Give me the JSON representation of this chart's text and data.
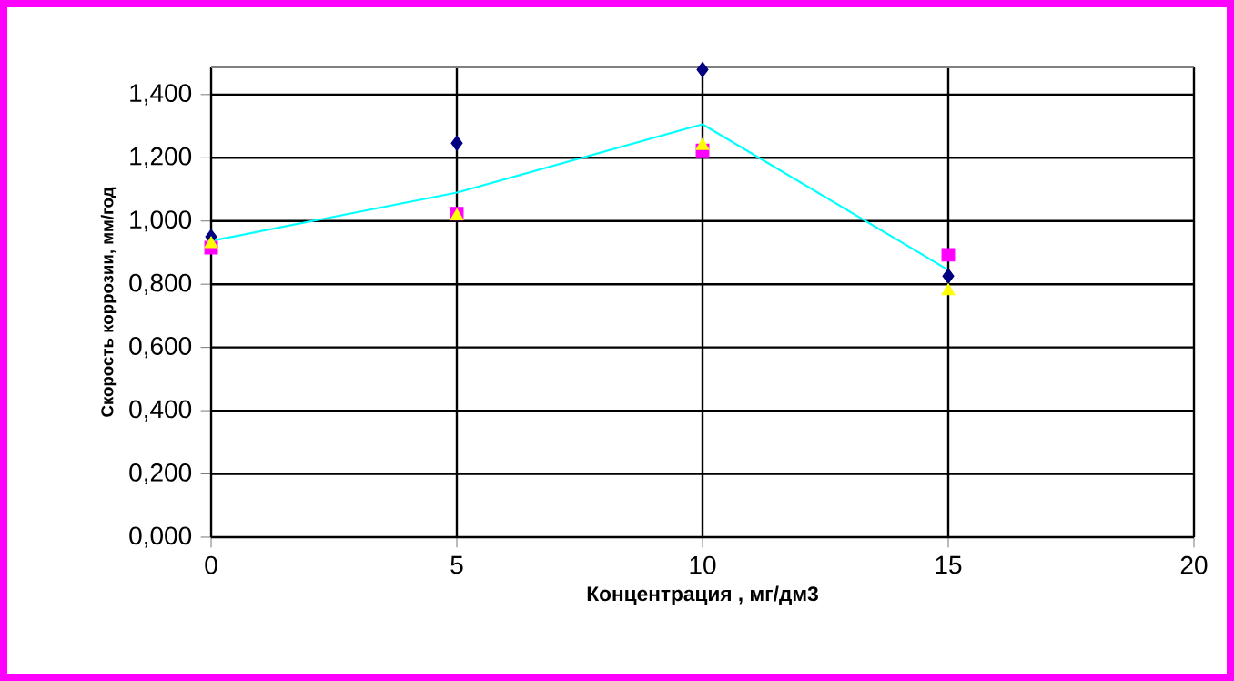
{
  "chart_data": {
    "type": "scatter",
    "xlabel": "Концентрация , мг/дм3",
    "ylabel": "Скорость коррозии, мм/год",
    "x": [
      0,
      5,
      10,
      15
    ],
    "series": [
      {
        "color": "#000080",
        "marker": "diamond",
        "values": [
          0.95,
          1.246,
          1.479,
          0.826
        ]
      },
      {
        "color": "#ff00ff",
        "marker": "square",
        "values": [
          0.916,
          1.023,
          1.223,
          0.893
        ]
      },
      {
        "color": "#ffff00",
        "marker": "triangle",
        "values": [
          0.927,
          1.015,
          1.238,
          0.778
        ]
      },
      {
        "type": "line",
        "color": "#00ffff",
        "marker": "none",
        "values": [
          0.937,
          1.09,
          1.306,
          0.845
        ]
      }
    ],
    "xlim": [
      0,
      20
    ],
    "xticks": [
      0,
      5,
      10,
      15,
      20
    ],
    "ylim": [
      0,
      1.486
    ],
    "yticks": [
      {
        "value": 0,
        "label": "0,000"
      },
      {
        "value": 0.2,
        "label": "0,200"
      },
      {
        "value": 0.4,
        "label": "0,400"
      },
      {
        "value": 0.6,
        "label": "0,600"
      },
      {
        "value": 0.8,
        "label": "0,800"
      },
      {
        "value": 1.0,
        "label": "1,000"
      },
      {
        "value": 1.2,
        "label": "1,200"
      },
      {
        "value": 1.4,
        "label": "1,400"
      }
    ],
    "grid": true,
    "legend": false
  }
}
